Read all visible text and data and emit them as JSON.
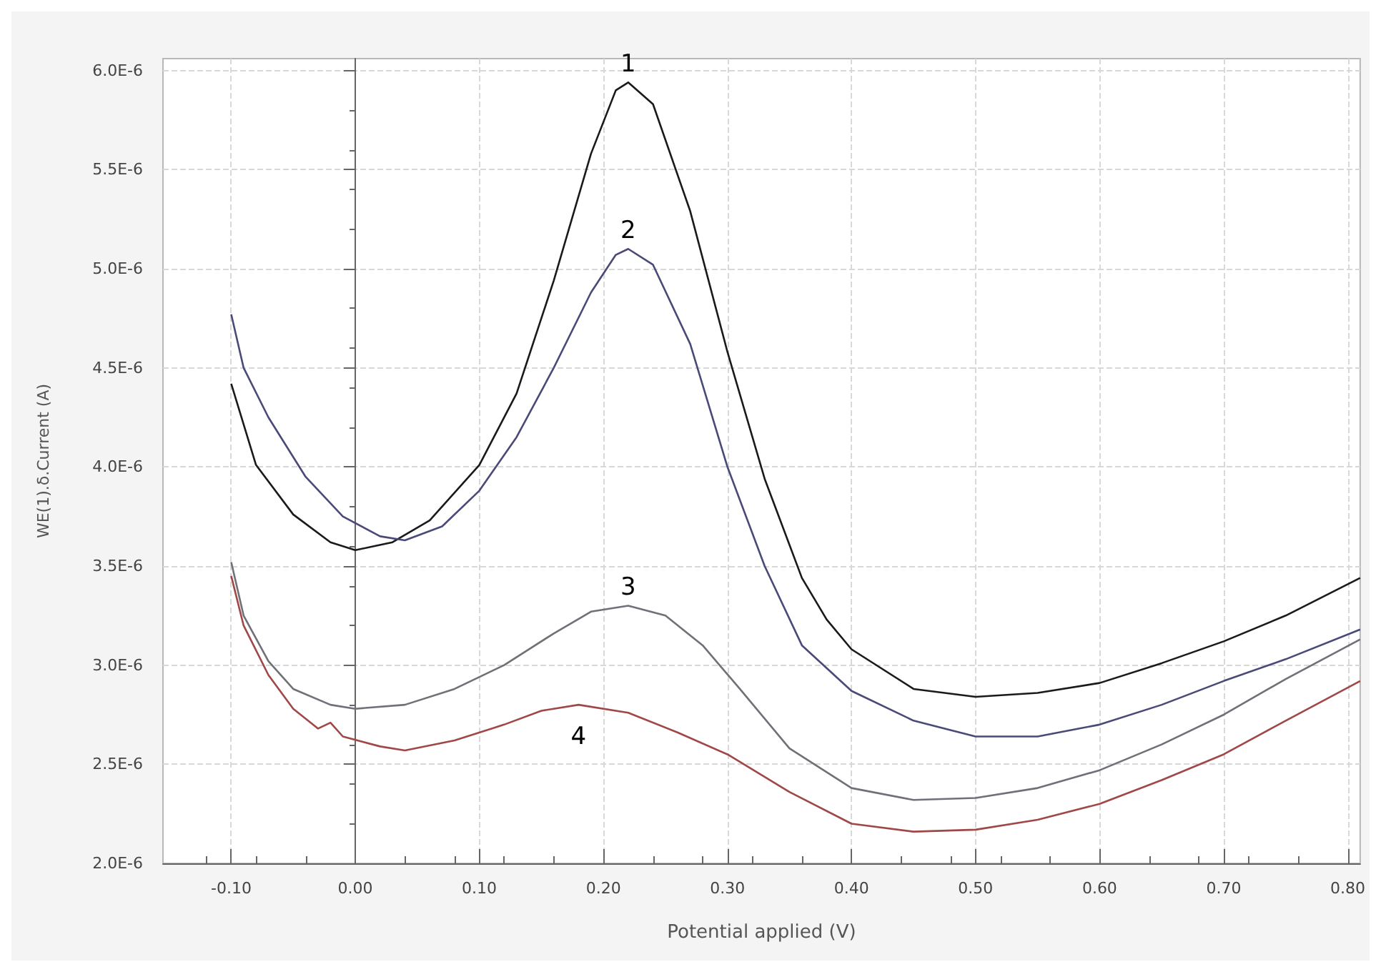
{
  "chart_data": {
    "type": "line",
    "xlabel": "Potential applied (V)",
    "ylabel": "WE(1).δ.Current (A)",
    "xlim": [
      -0.155,
      0.81
    ],
    "ylim": [
      2e-06,
      6.06e-06
    ],
    "xticks": [
      {
        "value": -0.1,
        "label": "-0.10"
      },
      {
        "value": 0,
        "label": "0.00"
      },
      {
        "value": 0.1,
        "label": "0.10"
      },
      {
        "value": 0.2,
        "label": "0.20"
      },
      {
        "value": 0.3,
        "label": "0.30"
      },
      {
        "value": 0.4,
        "label": "0.40"
      },
      {
        "value": 0.5,
        "label": "0.50"
      },
      {
        "value": 0.6,
        "label": "0.60"
      },
      {
        "value": 0.7,
        "label": "0.70"
      },
      {
        "value": 0.8,
        "label": "0.80"
      }
    ],
    "yticks": [
      {
        "value": 2e-06,
        "label": "2.0E-6"
      },
      {
        "value": 2.5e-06,
        "label": "2.5E-6"
      },
      {
        "value": 3e-06,
        "label": "3.0E-6"
      },
      {
        "value": 3.5e-06,
        "label": "3.5E-6"
      },
      {
        "value": 4e-06,
        "label": "4.0E-6"
      },
      {
        "value": 4.5e-06,
        "label": "4.5E-6"
      },
      {
        "value": 5e-06,
        "label": "5.0E-6"
      },
      {
        "value": 5.5e-06,
        "label": "5.5E-6"
      },
      {
        "value": 6e-06,
        "label": "6.0E-6"
      }
    ],
    "grid": true,
    "legend": false,
    "marker": "none",
    "line_style": "solid",
    "series": [
      {
        "name": "1",
        "color": "#1a1a1a",
        "x": [
          -0.1,
          -0.08,
          -0.05,
          -0.02,
          0,
          0.03,
          0.06,
          0.1,
          0.13,
          0.16,
          0.19,
          0.21,
          0.22,
          0.24,
          0.27,
          0.3,
          0.33,
          0.36,
          0.38,
          0.4,
          0.45,
          0.5,
          0.55,
          0.6,
          0.65,
          0.7,
          0.75,
          0.81
        ],
        "values": [
          4.42e-06,
          4.01e-06,
          3.76e-06,
          3.62e-06,
          3.58e-06,
          3.62e-06,
          3.73e-06,
          4.01e-06,
          4.37e-06,
          4.94e-06,
          5.58e-06,
          5.9e-06,
          5.94e-06,
          5.83e-06,
          5.29e-06,
          4.58e-06,
          3.94e-06,
          3.44e-06,
          3.23e-06,
          3.08e-06,
          2.88e-06,
          2.84e-06,
          2.86e-06,
          2.91e-06,
          3.01e-06,
          3.12e-06,
          3.25e-06,
          3.44e-06
        ]
      },
      {
        "name": "2",
        "color": "#4a4a78",
        "x": [
          -0.1,
          -0.09,
          -0.07,
          -0.04,
          -0.01,
          0.02,
          0.04,
          0.07,
          0.1,
          0.13,
          0.16,
          0.19,
          0.21,
          0.22,
          0.24,
          0.27,
          0.3,
          0.33,
          0.36,
          0.4,
          0.45,
          0.5,
          0.55,
          0.6,
          0.65,
          0.7,
          0.75,
          0.81
        ],
        "values": [
          4.77e-06,
          4.5e-06,
          4.25e-06,
          3.95e-06,
          3.75e-06,
          3.65e-06,
          3.63e-06,
          3.7e-06,
          3.88e-06,
          4.15e-06,
          4.5e-06,
          4.88e-06,
          5.07e-06,
          5.1e-06,
          5.02e-06,
          4.62e-06,
          4e-06,
          3.5e-06,
          3.1e-06,
          2.87e-06,
          2.72e-06,
          2.64e-06,
          2.64e-06,
          2.7e-06,
          2.8e-06,
          2.92e-06,
          3.03e-06,
          3.18e-06
        ]
      },
      {
        "name": "3",
        "color": "#707078",
        "x": [
          -0.1,
          -0.09,
          -0.07,
          -0.05,
          -0.02,
          0,
          0.04,
          0.08,
          0.12,
          0.16,
          0.19,
          0.22,
          0.25,
          0.28,
          0.31,
          0.35,
          0.4,
          0.45,
          0.5,
          0.55,
          0.6,
          0.65,
          0.7,
          0.75,
          0.81
        ],
        "values": [
          3.52e-06,
          3.25e-06,
          3.02e-06,
          2.88e-06,
          2.8e-06,
          2.78e-06,
          2.8e-06,
          2.88e-06,
          3e-06,
          3.16e-06,
          3.27e-06,
          3.3e-06,
          3.25e-06,
          3.1e-06,
          2.88e-06,
          2.58e-06,
          2.38e-06,
          2.32e-06,
          2.33e-06,
          2.38e-06,
          2.47e-06,
          2.6e-06,
          2.75e-06,
          2.93e-06,
          3.13e-06
        ]
      },
      {
        "name": "4",
        "color": "#a04848",
        "x": [
          -0.1,
          -0.09,
          -0.07,
          -0.05,
          -0.03,
          -0.02,
          -0.01,
          0.02,
          0.04,
          0.08,
          0.12,
          0.15,
          0.18,
          0.22,
          0.26,
          0.3,
          0.35,
          0.4,
          0.45,
          0.5,
          0.55,
          0.6,
          0.65,
          0.7,
          0.75,
          0.81
        ],
        "values": [
          3.45e-06,
          3.2e-06,
          2.95e-06,
          2.78e-06,
          2.68e-06,
          2.71e-06,
          2.64e-06,
          2.59e-06,
          2.57e-06,
          2.62e-06,
          2.7e-06,
          2.77e-06,
          2.8e-06,
          2.76e-06,
          2.66e-06,
          2.55e-06,
          2.36e-06,
          2.2e-06,
          2.16e-06,
          2.17e-06,
          2.22e-06,
          2.3e-06,
          2.42e-06,
          2.55e-06,
          2.72e-06,
          2.92e-06
        ]
      }
    ]
  }
}
